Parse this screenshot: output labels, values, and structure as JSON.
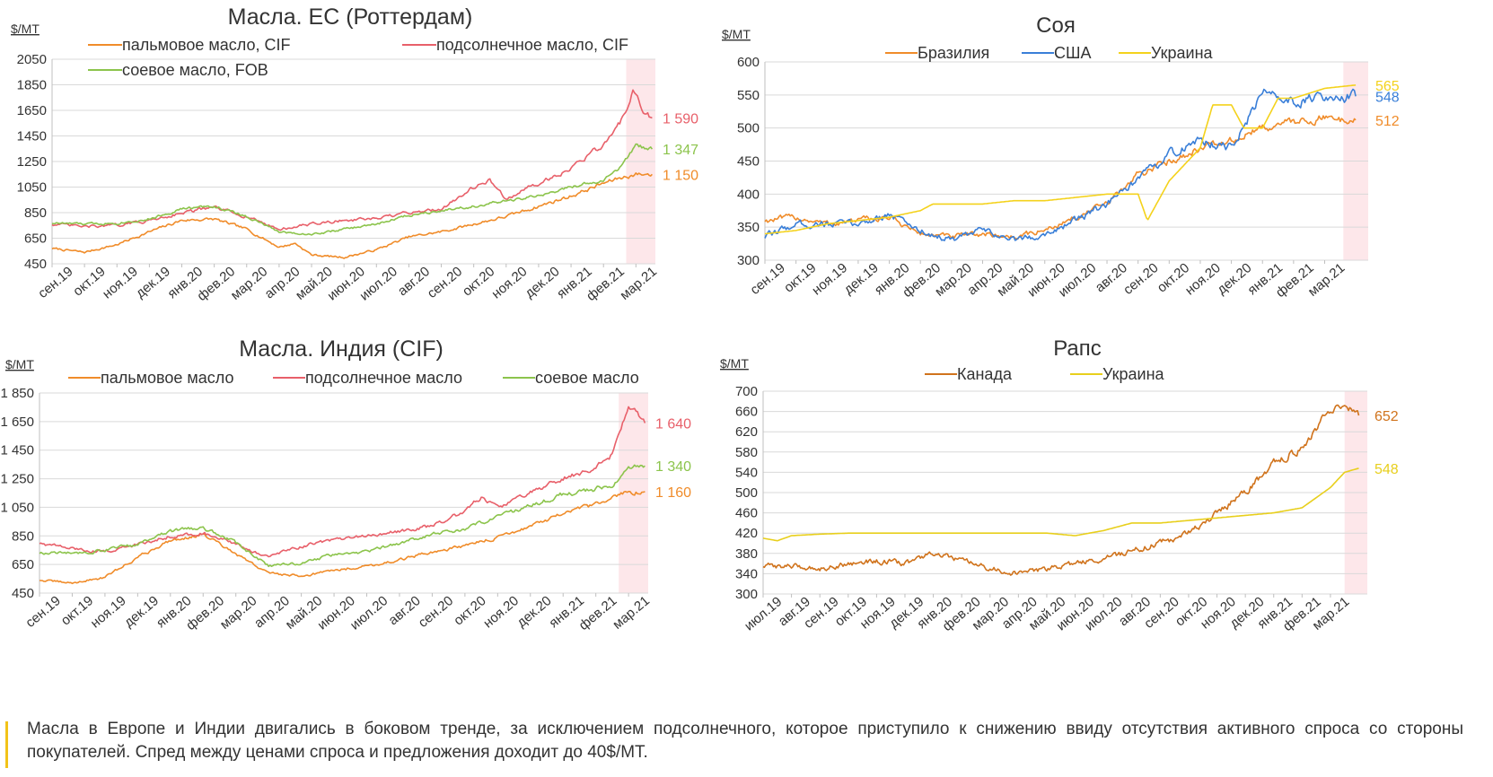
{
  "chart_data": [
    {
      "id": "eu",
      "type": "line",
      "title": "Масла. ЕС (Роттердам)",
      "ylabel": "$/МТ",
      "ylim": [
        450,
        2050
      ],
      "yticks": [
        2050,
        1850,
        1650,
        1450,
        1250,
        1050,
        850,
        650,
        450
      ],
      "ytick_labels": [
        "2050",
        "1850",
        "1650",
        "1450",
        "1250",
        "1050",
        "850",
        "650",
        "450"
      ],
      "xlim": [
        0,
        18.6
      ],
      "categories": [
        "сен.19",
        "окт.19",
        "ноя.19",
        "дек.19",
        "янв.20",
        "фев.20",
        "мар.20",
        "апр.20",
        "май.20",
        "июн.20",
        "июл.20",
        "авг.20",
        "сен.20",
        "окт.20",
        "ноя.20",
        "дек.20",
        "янв.21",
        "фев.21",
        "мар.21"
      ],
      "highlight": [
        17.7,
        18.6
      ],
      "series": [
        {
          "name": "пальмовое масло, CIF",
          "color": "#f08c2a",
          "end_label": "1 150",
          "noise": 0.012,
          "x": [
            0,
            1,
            2,
            3,
            4,
            5,
            6,
            7,
            7.5,
            8,
            9,
            10,
            11,
            12,
            13,
            14,
            15,
            16,
            17,
            17.5,
            18,
            18.5
          ],
          "y": [
            570,
            540,
            600,
            700,
            790,
            800,
            720,
            580,
            610,
            520,
            500,
            560,
            660,
            700,
            760,
            820,
            900,
            980,
            1080,
            1120,
            1150,
            1150
          ]
        },
        {
          "name": "подсолнечное масло, CIF",
          "color": "#e8606a",
          "end_label": "1 590",
          "noise": 0.012,
          "x": [
            0,
            1,
            2,
            3,
            4,
            5,
            6,
            7,
            8,
            9,
            10,
            11,
            12,
            13,
            13.5,
            14,
            15,
            16,
            17,
            17.5,
            17.9,
            18.2,
            18.5
          ],
          "y": [
            760,
            740,
            750,
            790,
            850,
            890,
            820,
            720,
            760,
            790,
            800,
            850,
            880,
            1050,
            1100,
            960,
            1080,
            1200,
            1380,
            1540,
            1790,
            1660,
            1590
          ]
        },
        {
          "name": "соевое масло, FOB",
          "color": "#8cc44c",
          "end_label": "1 347",
          "noise": 0.01,
          "x": [
            0,
            1,
            2,
            3,
            4,
            5,
            6,
            7,
            8,
            9,
            10,
            11,
            12,
            13,
            14,
            15,
            16,
            17,
            17.5,
            18,
            18.5
          ],
          "y": [
            770,
            760,
            770,
            800,
            880,
            900,
            820,
            700,
            680,
            720,
            760,
            830,
            870,
            900,
            940,
            980,
            1050,
            1100,
            1200,
            1370,
            1347
          ]
        }
      ]
    },
    {
      "id": "soy",
      "type": "line",
      "title": "Соя",
      "ylabel": "$/МТ",
      "ylim": [
        300,
        600
      ],
      "yticks": [
        600,
        550,
        500,
        450,
        400,
        350,
        300
      ],
      "ytick_labels": [
        "600",
        "550",
        "500",
        "450",
        "400",
        "350",
        "300"
      ],
      "xlim": [
        0,
        19.4
      ],
      "categories": [
        "сен.19",
        "окт.19",
        "ноя.19",
        "дек.19",
        "янв.20",
        "фев.20",
        "мар.20",
        "апр.20",
        "май.20",
        "июн.20",
        "июл.20",
        "авг.20",
        "сен.20",
        "окт.20",
        "ноя.20",
        "дек.20",
        "янв.21",
        "фев.21",
        "мар.21"
      ],
      "highlight": [
        18.6,
        19.4
      ],
      "series": [
        {
          "name": "Бразилия",
          "color": "#f08c2a",
          "end_label": "512",
          "noise": 0.01,
          "x": [
            0,
            1,
            2,
            3,
            4,
            5,
            6,
            7,
            8,
            9,
            10,
            11,
            12,
            13,
            14,
            15,
            16,
            17,
            18,
            19
          ],
          "y": [
            360,
            365,
            355,
            360,
            365,
            340,
            335,
            340,
            335,
            345,
            365,
            385,
            430,
            450,
            470,
            480,
            500,
            510,
            515,
            512
          ]
        },
        {
          "name": "США",
          "color": "#3a7fd8",
          "end_label": "548",
          "noise": 0.012,
          "x": [
            0,
            1,
            2,
            3,
            4,
            5,
            6,
            7,
            8,
            9,
            10,
            11,
            12,
            13,
            14,
            15,
            16,
            16.2,
            17,
            18,
            19
          ],
          "y": [
            335,
            355,
            355,
            355,
            370,
            345,
            330,
            345,
            330,
            340,
            360,
            385,
            420,
            460,
            480,
            470,
            550,
            560,
            540,
            550,
            548
          ]
        },
        {
          "name": "Украина",
          "color": "#f4d21c",
          "end_label": "565",
          "noise": 0,
          "x": [
            0,
            1,
            2,
            3,
            4,
            5,
            5.4,
            6,
            7,
            8,
            9,
            10,
            11,
            12,
            12.3,
            13,
            14,
            14.4,
            15,
            15.4,
            16,
            16.5,
            17,
            18,
            19
          ],
          "y": [
            340,
            345,
            355,
            360,
            365,
            375,
            385,
            385,
            385,
            390,
            390,
            395,
            400,
            400,
            360,
            420,
            470,
            535,
            535,
            500,
            500,
            545,
            545,
            560,
            565
          ]
        }
      ]
    },
    {
      "id": "india",
      "type": "line",
      "title": "Масла. Индия (CIF)",
      "ylabel": "$/МТ",
      "ylim": [
        450,
        1850
      ],
      "yticks": [
        1850,
        1650,
        1450,
        1250,
        1050,
        850,
        650,
        450
      ],
      "ytick_labels": [
        "1 850",
        "1 650",
        "1 450",
        "1 250",
        "1 050",
        "850",
        "650",
        "450"
      ],
      "xlim": [
        0,
        18.6
      ],
      "categories": [
        "сен.19",
        "окт.19",
        "ноя.19",
        "дек.19",
        "янв.20",
        "фев.20",
        "мар.20",
        "апр.20",
        "май.20",
        "июн.20",
        "июл.20",
        "авг.20",
        "сен.20",
        "окт.20",
        "ноя.20",
        "дек.20",
        "янв.21",
        "фев.21",
        "мар.21"
      ],
      "highlight": [
        17.7,
        18.6
      ],
      "series": [
        {
          "name": "пальмовое масло",
          "color": "#f08c2a",
          "end_label": "1 160",
          "noise": 0.012,
          "x": [
            0,
            1,
            2,
            3,
            4,
            5,
            6,
            7,
            8,
            9,
            10,
            11,
            12,
            13,
            14,
            15,
            16,
            17,
            17.5,
            18,
            18.5
          ],
          "y": [
            540,
            520,
            560,
            700,
            820,
            860,
            720,
            590,
            570,
            610,
            640,
            680,
            740,
            780,
            840,
            920,
            1000,
            1070,
            1110,
            1160,
            1160
          ]
        },
        {
          "name": "подсолнечное масло",
          "color": "#e8606a",
          "end_label": "1 640",
          "noise": 0.012,
          "x": [
            0,
            1,
            2,
            3,
            4,
            5,
            6,
            7,
            8,
            9,
            10,
            11,
            12,
            13,
            13.5,
            14,
            15,
            16,
            17,
            17.5,
            18,
            18.5
          ],
          "y": [
            800,
            760,
            740,
            790,
            850,
            870,
            790,
            700,
            780,
            820,
            850,
            880,
            920,
            1020,
            1120,
            1050,
            1150,
            1250,
            1330,
            1420,
            1760,
            1640
          ]
        },
        {
          "name": "соевое масло",
          "color": "#8cc44c",
          "end_label": "1 340",
          "noise": 0.012,
          "x": [
            0,
            1,
            2,
            3,
            4,
            5,
            6,
            7,
            8,
            9,
            10,
            11,
            12,
            13,
            14,
            15,
            16,
            17,
            17.5,
            18,
            18.5
          ],
          "y": [
            730,
            730,
            750,
            790,
            880,
            910,
            800,
            640,
            660,
            720,
            740,
            800,
            860,
            900,
            990,
            1060,
            1140,
            1180,
            1200,
            1340,
            1340
          ]
        }
      ]
    },
    {
      "id": "rapeseed",
      "type": "line",
      "title": "Рапс",
      "ylabel": "$/МТ",
      "ylim": [
        300,
        700
      ],
      "yticks": [
        700,
        660,
        620,
        580,
        540,
        500,
        460,
        420,
        380,
        340,
        300
      ],
      "ytick_labels": [
        "700",
        "660",
        "620",
        "580",
        "540",
        "500",
        "460",
        "420",
        "380",
        "340",
        "300"
      ],
      "xlim": [
        0,
        21.3
      ],
      "categories": [
        "июл.19",
        "авг.19",
        "сен.19",
        "окт.19",
        "ноя.19",
        "дек.19",
        "янв.20",
        "фев.20",
        "мар.20",
        "апр.20",
        "май.20",
        "июн.20",
        "июл.20",
        "авг.20",
        "сен.20",
        "окт.20",
        "ноя.20",
        "дек.20",
        "янв.21",
        "фев.21",
        "мар.21"
      ],
      "highlight": [
        20.5,
        21.3
      ],
      "series": [
        {
          "name": "Канада",
          "color": "#d0731c",
          "end_label": "652",
          "noise": 0.012,
          "x": [
            0,
            1,
            2,
            3,
            4,
            5,
            6,
            7,
            8,
            9,
            10,
            11,
            12,
            13,
            14,
            15,
            16,
            17,
            18,
            19,
            19.5,
            20,
            20.5,
            21
          ],
          "y": [
            355,
            355,
            350,
            360,
            365,
            360,
            380,
            365,
            350,
            340,
            350,
            360,
            370,
            385,
            400,
            420,
            460,
            500,
            560,
            590,
            630,
            660,
            665,
            652
          ]
        },
        {
          "name": "Украина",
          "color": "#e8cf1c",
          "end_label": "548",
          "noise": 0,
          "x": [
            0,
            0.5,
            1,
            2,
            3,
            4,
            5,
            6,
            7,
            8,
            9,
            10,
            11,
            12,
            13,
            14,
            15,
            16,
            17,
            18,
            19,
            19.5,
            20,
            20.5,
            21
          ],
          "y": [
            410,
            405,
            415,
            418,
            420,
            420,
            420,
            420,
            420,
            420,
            420,
            420,
            415,
            425,
            440,
            440,
            445,
            450,
            455,
            460,
            470,
            490,
            510,
            540,
            548
          ]
        }
      ]
    }
  ],
  "note": "Масла в Европе и Индии двигались в боковом тренде, за исключением подсолнечного, которое приступило к снижению ввиду отсутствия активного спроса со стороны покупателей. Спред между ценами спроса и предложения доходит до 40$/МТ."
}
